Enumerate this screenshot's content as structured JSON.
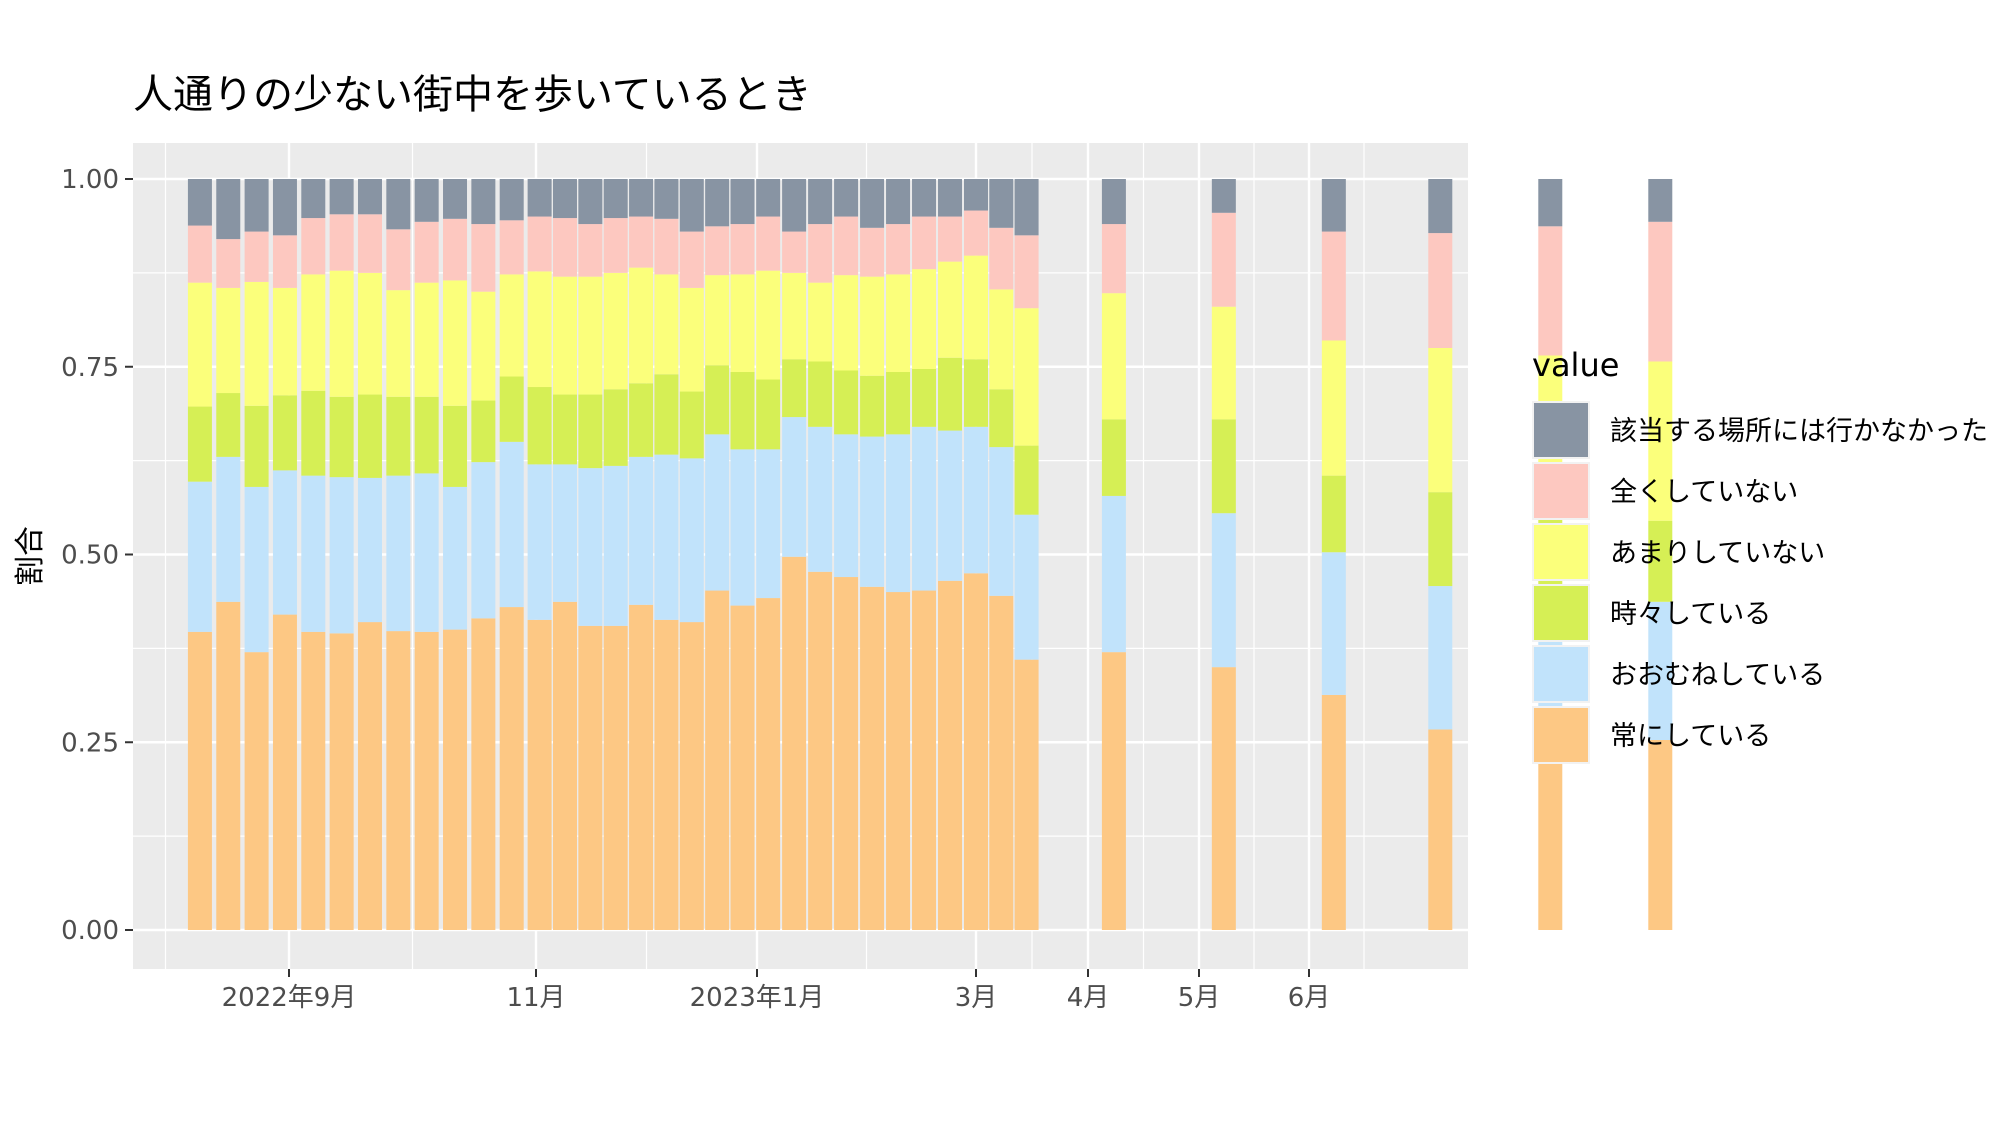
{
  "chart_data": {
    "type": "bar",
    "stacked": true,
    "title": "人通りの少ない街中を歩いているとき",
    "ylabel": "割合",
    "xlabel": "",
    "ylim": [
      0,
      1.05
    ],
    "yticks": [
      "0.00",
      "0.25",
      "0.50",
      "0.75",
      "1.00"
    ],
    "ytick_values": [
      0,
      0.25,
      0.5,
      0.75,
      1.0
    ],
    "xticks": [
      {
        "label": "2022年9月",
        "date": "2022-09-01"
      },
      {
        "label": "11月",
        "date": "2022-11-01"
      },
      {
        "label": "2023年1月",
        "date": "2023-01-01"
      },
      {
        "label": "3月",
        "date": "2023-03-01"
      },
      {
        "label": "4月",
        "date": "2023-04-01"
      },
      {
        "label": "5月",
        "date": "2023-05-01"
      },
      {
        "label": "6月",
        "date": "2023-06-01"
      }
    ],
    "legend_title": "value",
    "legend_position": "right",
    "panel_background": "#ebebeb",
    "grid": true,
    "series_order_bottom_to_top": [
      "常にしている",
      "おおむねしている",
      "時々している",
      "あまりしていない",
      "全くしていない",
      "該当する場所には行かなかった"
    ],
    "series_colors": [
      "#fdc884",
      "#c1e3fb",
      "#d6ef55",
      "#fbff7b",
      "#fdc8c0",
      "#8894a3"
    ],
    "legend_order": [
      "該当する場所には行かなかった",
      "全くしていない",
      "あまりしていない",
      "時々している",
      "おおむねしている",
      "常にしている"
    ],
    "bars": [
      {
        "date": "2022-08-10",
        "cum": [
          0.397,
          0.597,
          0.697,
          0.862,
          0.938,
          1.0
        ]
      },
      {
        "date": "2022-08-17",
        "cum": [
          0.437,
          0.63,
          0.715,
          0.855,
          0.92,
          1.0
        ]
      },
      {
        "date": "2022-08-24",
        "cum": [
          0.37,
          0.59,
          0.698,
          0.863,
          0.93,
          1.0
        ]
      },
      {
        "date": "2022-08-31",
        "cum": [
          0.42,
          0.612,
          0.712,
          0.855,
          0.925,
          1.0
        ]
      },
      {
        "date": "2022-09-07",
        "cum": [
          0.397,
          0.605,
          0.718,
          0.873,
          0.948,
          1.0
        ]
      },
      {
        "date": "2022-09-14",
        "cum": [
          0.395,
          0.603,
          0.71,
          0.878,
          0.953,
          1.0
        ]
      },
      {
        "date": "2022-09-21",
        "cum": [
          0.41,
          0.602,
          0.713,
          0.875,
          0.953,
          1.0
        ]
      },
      {
        "date": "2022-09-28",
        "cum": [
          0.398,
          0.605,
          0.71,
          0.852,
          0.933,
          1.0
        ]
      },
      {
        "date": "2022-10-05",
        "cum": [
          0.397,
          0.608,
          0.71,
          0.862,
          0.943,
          1.0
        ]
      },
      {
        "date": "2022-10-12",
        "cum": [
          0.4,
          0.59,
          0.698,
          0.865,
          0.947,
          1.0
        ]
      },
      {
        "date": "2022-10-19",
        "cum": [
          0.415,
          0.623,
          0.705,
          0.85,
          0.94,
          1.0
        ]
      },
      {
        "date": "2022-10-26",
        "cum": [
          0.43,
          0.65,
          0.737,
          0.873,
          0.945,
          1.0
        ]
      },
      {
        "date": "2022-11-02",
        "cum": [
          0.413,
          0.62,
          0.723,
          0.877,
          0.95,
          1.0
        ]
      },
      {
        "date": "2022-11-09",
        "cum": [
          0.437,
          0.62,
          0.713,
          0.87,
          0.948,
          1.0
        ]
      },
      {
        "date": "2022-11-16",
        "cum": [
          0.405,
          0.615,
          0.713,
          0.87,
          0.94,
          1.0
        ]
      },
      {
        "date": "2022-11-23",
        "cum": [
          0.405,
          0.618,
          0.72,
          0.875,
          0.948,
          1.0
        ]
      },
      {
        "date": "2022-11-30",
        "cum": [
          0.433,
          0.63,
          0.728,
          0.882,
          0.95,
          1.0
        ]
      },
      {
        "date": "2022-12-07",
        "cum": [
          0.413,
          0.633,
          0.74,
          0.873,
          0.947,
          1.0
        ]
      },
      {
        "date": "2022-12-14",
        "cum": [
          0.41,
          0.628,
          0.717,
          0.855,
          0.93,
          1.0
        ]
      },
      {
        "date": "2022-12-21",
        "cum": [
          0.452,
          0.66,
          0.752,
          0.872,
          0.937,
          1.0
        ]
      },
      {
        "date": "2022-12-28",
        "cum": [
          0.432,
          0.64,
          0.743,
          0.873,
          0.94,
          1.0
        ]
      },
      {
        "date": "2023-01-04",
        "cum": [
          0.442,
          0.64,
          0.733,
          0.878,
          0.95,
          1.0
        ]
      },
      {
        "date": "2023-01-11",
        "cum": [
          0.497,
          0.683,
          0.76,
          0.875,
          0.93,
          1.0
        ]
      },
      {
        "date": "2023-01-18",
        "cum": [
          0.477,
          0.67,
          0.757,
          0.862,
          0.94,
          1.0
        ]
      },
      {
        "date": "2023-01-25",
        "cum": [
          0.47,
          0.66,
          0.745,
          0.872,
          0.95,
          1.0
        ]
      },
      {
        "date": "2023-02-01",
        "cum": [
          0.457,
          0.657,
          0.738,
          0.87,
          0.935,
          1.0
        ]
      },
      {
        "date": "2023-02-08",
        "cum": [
          0.45,
          0.66,
          0.743,
          0.873,
          0.94,
          1.0
        ]
      },
      {
        "date": "2023-02-15",
        "cum": [
          0.452,
          0.67,
          0.747,
          0.88,
          0.95,
          1.0
        ]
      },
      {
        "date": "2023-02-22",
        "cum": [
          0.465,
          0.665,
          0.762,
          0.89,
          0.95,
          1.0
        ]
      },
      {
        "date": "2023-03-01",
        "cum": [
          0.475,
          0.67,
          0.76,
          0.898,
          0.958,
          1.0
        ]
      },
      {
        "date": "2023-03-08",
        "cum": [
          0.445,
          0.643,
          0.72,
          0.853,
          0.935,
          1.0
        ]
      },
      {
        "date": "2023-03-15",
        "cum": [
          0.36,
          0.553,
          0.645,
          0.828,
          0.925,
          1.0
        ]
      },
      {
        "date": "2023-04-08",
        "cum": [
          0.37,
          0.578,
          0.68,
          0.848,
          0.94,
          1.0
        ]
      },
      {
        "date": "2023-05-08",
        "cum": [
          0.35,
          0.555,
          0.68,
          0.83,
          0.955,
          1.0
        ]
      },
      {
        "date": "2023-06-08",
        "cum": [
          0.313,
          0.503,
          0.605,
          0.785,
          0.93,
          1.0
        ]
      },
      {
        "date": "2023-07-08",
        "cum": [
          0.267,
          0.458,
          0.583,
          0.775,
          0.928,
          1.0
        ]
      },
      {
        "date": "2023-08-08",
        "cum": [
          0.263,
          0.458,
          0.583,
          0.765,
          0.937,
          1.0
        ]
      },
      {
        "date": "2023-09-08",
        "cum": [
          0.253,
          0.437,
          0.545,
          0.757,
          0.943,
          1.0
        ]
      }
    ]
  }
}
